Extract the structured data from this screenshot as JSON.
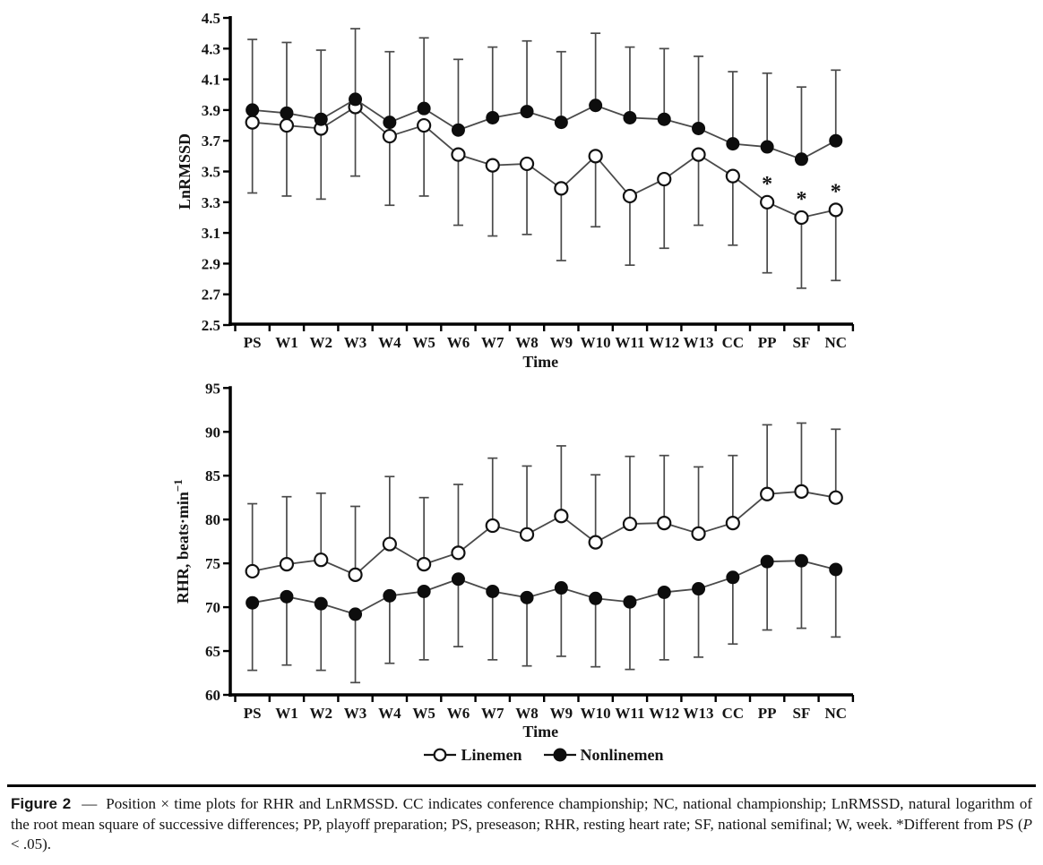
{
  "colors": {
    "background": "#ffffff",
    "axis": "#000000",
    "line": "#4a4a4a",
    "marker_fill": "#0d0d0d",
    "text": "#151515"
  },
  "legend": {
    "items": [
      {
        "label": "Linemen",
        "marker": "open-circle"
      },
      {
        "label": "Nonlinemen",
        "marker": "filled-circle"
      }
    ]
  },
  "caption": {
    "label": "Figure 2",
    "dash": "—",
    "body": "Position × time plots for RHR and LnRMSSD. CC indicates conference championship; NC, national championship; LnRMSSD, natural logarithm of the root mean square of successive differences; PP, playoff preparation; PS, preseason; RHR, resting heart rate; SF, national semifinal; W, week. *Different from PS (",
    "p_var": "P",
    "tail": " < .05)."
  },
  "chart_data": [
    {
      "type": "line",
      "name": "lnrmssd",
      "title": "",
      "xlabel": "Time",
      "ylabel": "LnRMSSD",
      "categories": [
        "PS",
        "W1",
        "W2",
        "W3",
        "W4",
        "W5",
        "W6",
        "W7",
        "W8",
        "W9",
        "W10",
        "W11",
        "W12",
        "W13",
        "CC",
        "PP",
        "SF",
        "NC"
      ],
      "ylim": [
        2.5,
        4.5
      ],
      "yticks": [
        4.5,
        4.3,
        4.1,
        3.9,
        3.7,
        3.5,
        3.3,
        3.1,
        2.9,
        2.7,
        2.5
      ],
      "ytick_labels": [
        "4.5",
        "4.3",
        "4.1",
        "3.9",
        "3.7",
        "3.5",
        "3.3",
        "3.1",
        "2.9",
        "2.7",
        "2.5"
      ],
      "grid": false,
      "legend_position": "below-figure",
      "series": [
        {
          "name": "Linemen",
          "marker": "open-circle",
          "error_direction": "down",
          "values": [
            3.82,
            3.8,
            3.78,
            3.92,
            3.73,
            3.8,
            3.61,
            3.54,
            3.55,
            3.39,
            3.6,
            3.34,
            3.45,
            3.61,
            3.47,
            3.3,
            3.2,
            3.25
          ],
          "errors": [
            0.46,
            0.46,
            0.46,
            0.45,
            0.45,
            0.46,
            0.46,
            0.46,
            0.46,
            0.47,
            0.46,
            0.45,
            0.45,
            0.46,
            0.45,
            0.46,
            0.46,
            0.46
          ],
          "annotations": [
            {
              "category": "PP",
              "symbol": "*"
            },
            {
              "category": "SF",
              "symbol": "*"
            },
            {
              "category": "NC",
              "symbol": "*"
            }
          ]
        },
        {
          "name": "Nonlinemen",
          "marker": "filled-circle",
          "error_direction": "up",
          "values": [
            3.9,
            3.88,
            3.84,
            3.97,
            3.82,
            3.91,
            3.77,
            3.85,
            3.89,
            3.82,
            3.93,
            3.85,
            3.84,
            3.78,
            3.68,
            3.66,
            3.58,
            3.7
          ],
          "errors": [
            0.46,
            0.46,
            0.45,
            0.46,
            0.46,
            0.46,
            0.46,
            0.46,
            0.46,
            0.46,
            0.47,
            0.46,
            0.46,
            0.47,
            0.47,
            0.48,
            0.47,
            0.46
          ],
          "annotations": []
        }
      ]
    },
    {
      "type": "line",
      "name": "rhr",
      "title": "",
      "xlabel": "Time",
      "ylabel": "RHR, beats·min⁻¹",
      "ylabel_parts": {
        "base": "RHR, beats·min",
        "sup": "−1"
      },
      "categories": [
        "PS",
        "W1",
        "W2",
        "W3",
        "W4",
        "W5",
        "W6",
        "W7",
        "W8",
        "W9",
        "W10",
        "W11",
        "W12",
        "W13",
        "CC",
        "PP",
        "SF",
        "NC"
      ],
      "ylim": [
        60,
        95
      ],
      "yticks": [
        95,
        90,
        85,
        80,
        75,
        70,
        65,
        60
      ],
      "ytick_labels": [
        "95",
        "90",
        "85",
        "80",
        "75",
        "70",
        "65",
        "60"
      ],
      "grid": false,
      "legend_position": "below-figure",
      "series": [
        {
          "name": "Linemen",
          "marker": "open-circle",
          "error_direction": "up",
          "values": [
            74.1,
            74.9,
            75.4,
            73.7,
            77.2,
            74.9,
            76.2,
            79.3,
            78.3,
            80.4,
            77.4,
            79.5,
            79.6,
            78.4,
            79.6,
            82.9,
            83.2,
            82.5
          ],
          "errors": [
            7.7,
            7.7,
            7.6,
            7.8,
            7.7,
            7.6,
            7.8,
            7.7,
            7.8,
            8.0,
            7.7,
            7.7,
            7.7,
            7.6,
            7.7,
            7.9,
            7.8,
            7.8
          ],
          "annotations": []
        },
        {
          "name": "Nonlinemen",
          "marker": "filled-circle",
          "error_direction": "down",
          "values": [
            70.5,
            71.2,
            70.4,
            69.2,
            71.3,
            71.8,
            73.2,
            71.8,
            71.1,
            72.2,
            71.0,
            70.6,
            71.7,
            72.1,
            73.4,
            75.2,
            75.3,
            74.3
          ],
          "errors": [
            7.7,
            7.8,
            7.6,
            7.8,
            7.7,
            7.8,
            7.7,
            7.8,
            7.8,
            7.8,
            7.8,
            7.7,
            7.7,
            7.8,
            7.6,
            7.8,
            7.7,
            7.7
          ],
          "annotations": []
        }
      ]
    }
  ]
}
